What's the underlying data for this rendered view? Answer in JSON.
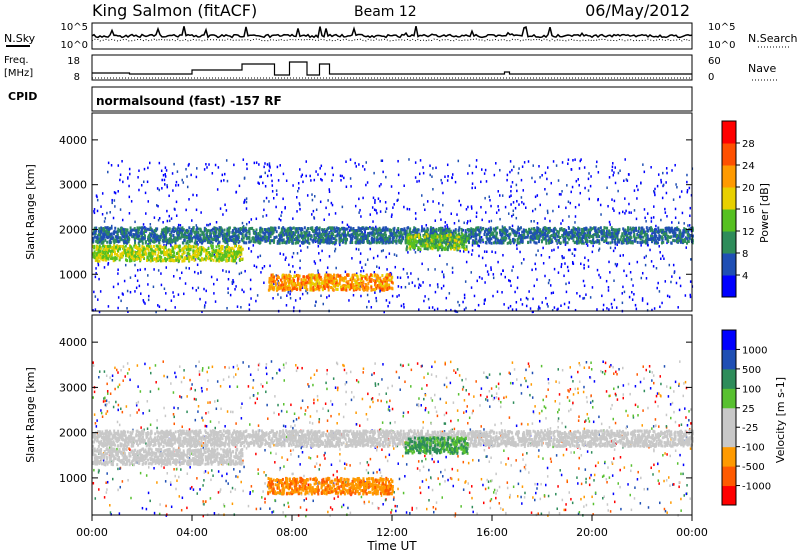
{
  "header": {
    "station": "King Salmon (fitACF)",
    "beam": "Beam 12",
    "date": "06/May/2012"
  },
  "noise_panel": {
    "left_label": "N.Sky",
    "right_label": "N.Search",
    "left_ticks": [
      "10^5",
      "10^0"
    ],
    "right_ticks": [
      "10^5",
      "10^0"
    ]
  },
  "freq_panel": {
    "left_label_line1": "Freq.",
    "left_label_line2": "[MHz]",
    "right_label": "Nave",
    "left_ticks": [
      "18",
      "8"
    ],
    "right_ticks": [
      "60",
      "0"
    ]
  },
  "cpid_panel": {
    "label": "CPID",
    "mode": "normalsound (fast) -157 RF"
  },
  "time_axis": {
    "label": "Time UT",
    "ticks": [
      "00:00",
      "04:00",
      "08:00",
      "12:00",
      "16:00",
      "20:00",
      "00:00"
    ]
  },
  "colors": {
    "power_scale": [
      "#0000ff",
      "#1f4fb4",
      "#2e8c5a",
      "#56c020",
      "#e8d000",
      "#ff9a00",
      "#ff5000",
      "#ff0000"
    ],
    "velocity_scale": [
      "#ff0000",
      "#ff5a00",
      "#ff9a00",
      "#c8c8c8",
      "#c8c8c8",
      "#58c030",
      "#2e8c5a",
      "#1f4fb4",
      "#0000ff"
    ]
  },
  "chart_data": [
    {
      "type": "heatmap",
      "title": "Power",
      "xlabel": "Time UT",
      "ylabel": "Slant Range [km]",
      "xlim": [
        0,
        24
      ],
      "ylim": [
        180,
        4600
      ],
      "yticks": [
        "1000",
        "2000",
        "3000",
        "4000"
      ],
      "colorbar": {
        "label": "Power [dB]",
        "ticks": [
          "28",
          "24",
          "20",
          "16",
          "12",
          "8",
          "4"
        ],
        "range": [
          0,
          30
        ]
      },
      "scatter_bands": [
        {
          "t_start": 0.0,
          "t_end": 6.0,
          "range_km": 1500,
          "power_db": 14
        },
        {
          "t_start": 0.0,
          "t_end": 24.0,
          "range_km": 1900,
          "power_db": 6
        },
        {
          "t_start": 7.0,
          "t_end": 12.0,
          "range_km": 850,
          "power_db": 20
        },
        {
          "t_start": 12.5,
          "t_end": 15.0,
          "range_km": 1750,
          "power_db": 12
        }
      ]
    },
    {
      "type": "heatmap",
      "title": "Velocity",
      "xlabel": "Time UT",
      "ylabel": "Slant Range [km]",
      "xlim": [
        0,
        24
      ],
      "ylim": [
        180,
        4600
      ],
      "yticks": [
        "1000",
        "2000",
        "3000",
        "4000"
      ],
      "colorbar": {
        "label": "Velocity [m s-1]",
        "ticks": [
          "1000",
          "500",
          "100",
          "25",
          "-25",
          "-100",
          "-500",
          "-1000"
        ],
        "range": [
          -1000,
          1000
        ]
      },
      "scatter_bands": [
        {
          "t_start": 0.0,
          "t_end": 6.0,
          "range_km": 1500,
          "velocity": 0
        },
        {
          "t_start": 0.0,
          "t_end": 24.0,
          "range_km": 1900,
          "velocity": 0
        },
        {
          "t_start": 7.0,
          "t_end": 12.0,
          "range_km": 850,
          "velocity": -300
        },
        {
          "t_start": 12.5,
          "t_end": 15.0,
          "range_km": 1750,
          "velocity": 300
        }
      ]
    }
  ]
}
